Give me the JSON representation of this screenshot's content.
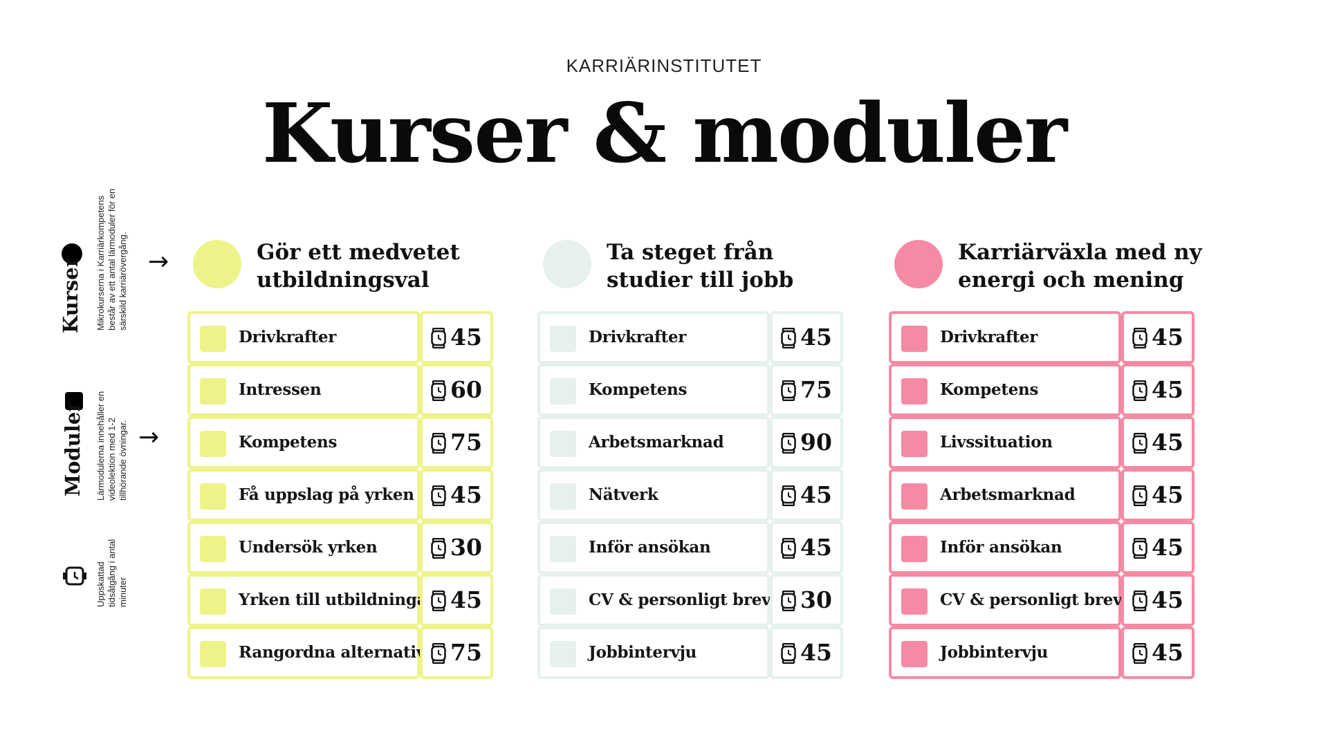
{
  "header": {
    "brand": "KARRIÄRINSTITUTET",
    "title": "Kurser & moduler"
  },
  "legend": {
    "kurser": {
      "heading": "Kurser",
      "description": "Mikrokurserna i Karriärkompetens består av ett antal lärmoduler för en särskild karriärövergång.",
      "icon": "black-circle-icon"
    },
    "moduler": {
      "heading": "Moduler",
      "description": "Lärmodulerna innehåller en videolektion med 1-2 tillhörande övningar.",
      "icon": "black-square-icon"
    },
    "tid": {
      "description": "Uppskattad tidsåtgång i antal minuter",
      "icon": "watch-icon"
    },
    "arrow_icon": "arrow-right-icon"
  },
  "courses": [
    {
      "title": "Gör ett medvetet utbildningsval",
      "color": "#eef389",
      "border": "#eef389",
      "modules": [
        {
          "name": "Drivkrafter",
          "minutes": "45"
        },
        {
          "name": "Intressen",
          "minutes": "60"
        },
        {
          "name": "Kompetens",
          "minutes": "75"
        },
        {
          "name": "Få uppslag på yrken",
          "minutes": "45"
        },
        {
          "name": "Undersök yrken",
          "minutes": "30"
        },
        {
          "name": "Yrken till utbildningar",
          "minutes": "45"
        },
        {
          "name": "Rangordna alternativ",
          "minutes": "75"
        }
      ]
    },
    {
      "title": "Ta steget från studier till jobb",
      "color": "#e6f0ee",
      "border": "#e6f0ee",
      "modules": [
        {
          "name": "Drivkrafter",
          "minutes": "45"
        },
        {
          "name": "Kompetens",
          "minutes": "75"
        },
        {
          "name": "Arbetsmarknad",
          "minutes": "90"
        },
        {
          "name": "Nätverk",
          "minutes": "45"
        },
        {
          "name": "Inför ansökan",
          "minutes": "45"
        },
        {
          "name": "CV & personligt brev",
          "minutes": "30"
        },
        {
          "name": "Jobbintervju",
          "minutes": "45"
        }
      ]
    },
    {
      "title": "Karriärväxla med ny energi och mening",
      "color": "#f68aa4",
      "border": "#f68aa4",
      "modules": [
        {
          "name": "Drivkrafter",
          "minutes": "45"
        },
        {
          "name": "Kompetens",
          "minutes": "45"
        },
        {
          "name": "Livssituation",
          "minutes": "45"
        },
        {
          "name": "Arbetsmarknad",
          "minutes": "45"
        },
        {
          "name": "Inför ansökan",
          "minutes": "45"
        },
        {
          "name": "CV & personligt brev",
          "minutes": "45"
        },
        {
          "name": "Jobbintervju",
          "minutes": "45"
        }
      ]
    }
  ]
}
